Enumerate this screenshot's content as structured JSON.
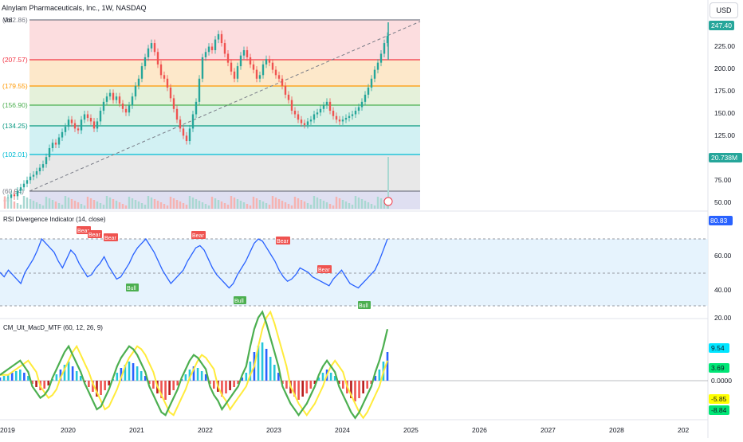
{
  "header": {
    "symbol_title": "Alnylam Pharmaceuticals, Inc., 1W, NASDAQ",
    "vol_label": "Vol",
    "currency_button": "USD"
  },
  "price_axis": {
    "ticks": [
      "225.00",
      "200.00",
      "175.00",
      "150.00",
      "125.00",
      "100.00",
      "75.00",
      "50.00"
    ],
    "last_price": "247.40",
    "volume_value": "20.738M"
  },
  "fib_levels": [
    {
      "label": "(262.86)",
      "color": "#787b86"
    },
    {
      "label": "(207.57)",
      "color": "#f23645"
    },
    {
      "label": "(179.55)",
      "color": "#ff9800"
    },
    {
      "label": "(156.90)",
      "color": "#4caf50"
    },
    {
      "label": "(134.25)",
      "color": "#089981"
    },
    {
      "label": "(102.01)",
      "color": "#00bcd4"
    },
    {
      "label": "(60.94)",
      "color": "#787b86"
    }
  ],
  "rsi_panel": {
    "title": "RSI Divergence Indicator (14, close)",
    "value": "80.83",
    "ticks": [
      "60.00",
      "40.00",
      "20.00"
    ],
    "bear_label": "Bear",
    "bull_label": "Bull"
  },
  "macd_panel": {
    "title": "CM_Ult_MacD_MTF (60, 12, 26, 9)",
    "values": [
      "9.54",
      "3.69",
      "0.0000",
      "-5.85",
      "-8.84"
    ]
  },
  "time_axis": [
    "2019",
    "2020",
    "2021",
    "2022",
    "2023",
    "2024",
    "2025",
    "2026",
    "2027",
    "2028",
    "202"
  ],
  "colors": {
    "up": "#26a69a",
    "down": "#ef5350",
    "rsi_line": "#2962ff",
    "macd_up": "#00e676",
    "macd_down": "#ff5252",
    "last_price_bg": "#26a69a"
  }
}
